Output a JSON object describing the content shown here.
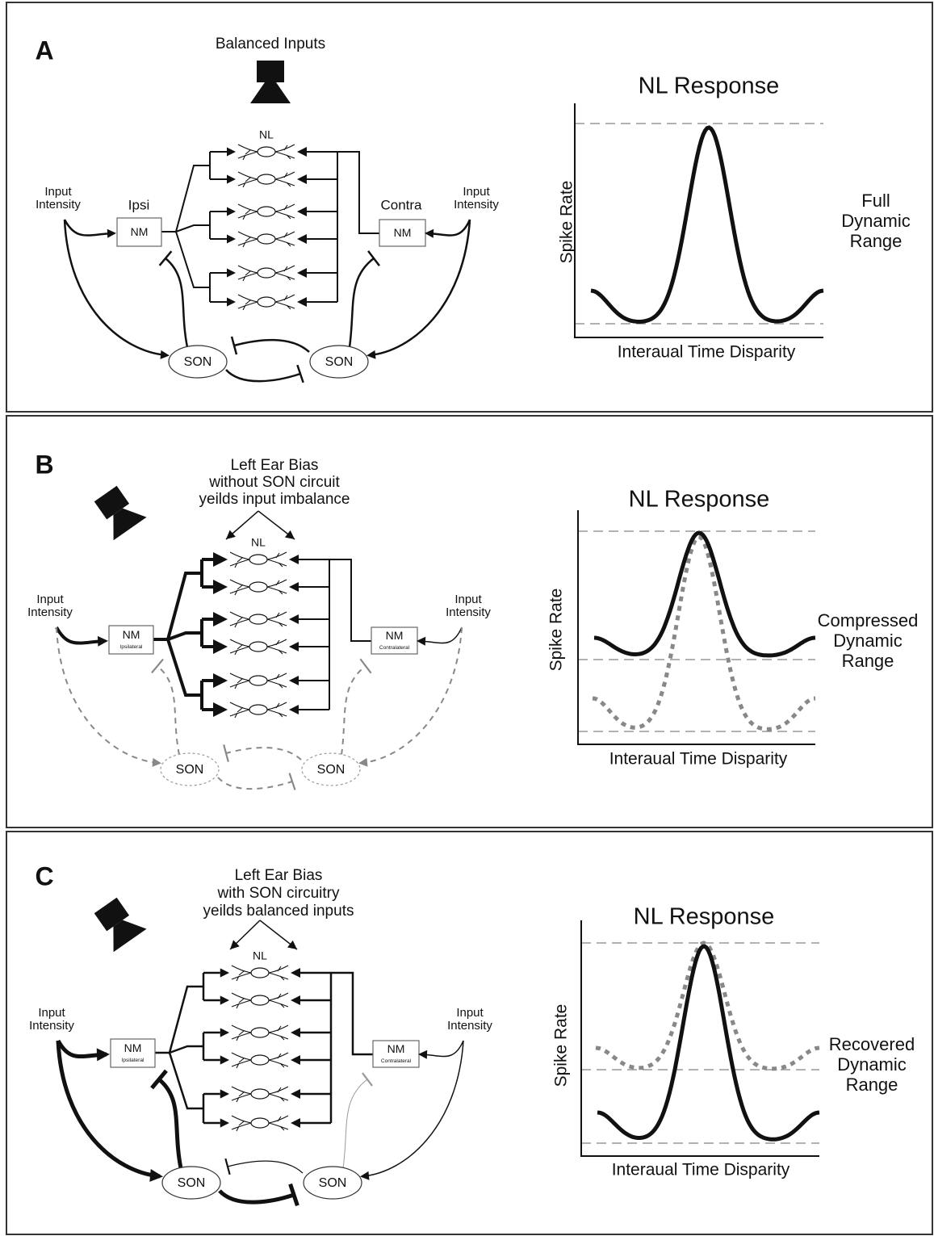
{
  "panels": [
    {
      "letter": "A",
      "stimulus": [
        "Balanced Inputs"
      ],
      "nl_label": "NL",
      "ipsi_label": "Ipsi",
      "contra_label": "Contra",
      "nm_left": [
        "NM"
      ],
      "nm_right": [
        "NM"
      ],
      "input_left": [
        "Input",
        "Intensity"
      ],
      "input_right": [
        "Input",
        "Intensity"
      ],
      "son_left": "SON",
      "son_right": "SON",
      "plot": {
        "title": "NL Response",
        "y_label": "Spike Rate",
        "x_label": "Interaual Time Disparity",
        "annotation": [
          "Full",
          "Dynamic",
          "Range"
        ]
      }
    },
    {
      "letter": "B",
      "stimulus": [
        "Left Ear Bias",
        "without SON circuit",
        "yeilds input imbalance"
      ],
      "nl_label": "NL",
      "nm_left": [
        "NM",
        "Ipsilateral"
      ],
      "nm_right": [
        "NM",
        "Contralateral"
      ],
      "input_left": [
        "Input",
        "Intensity"
      ],
      "input_right": [
        "Input",
        "Intensity"
      ],
      "son_left": "SON",
      "son_right": "SON",
      "plot": {
        "title": "NL Response",
        "y_label": "Spike Rate",
        "x_label": "Interaual Time Disparity",
        "annotation": [
          "Compressed",
          "Dynamic",
          "Range"
        ]
      }
    },
    {
      "letter": "C",
      "stimulus": [
        "Left Ear Bias",
        "with SON circuitry",
        "yeilds balanced inputs"
      ],
      "nl_label": "NL",
      "nm_left": [
        "NM",
        "Ipsilateral"
      ],
      "nm_right": [
        "NM",
        "Contralateral"
      ],
      "input_left": [
        "Input",
        "Intensity"
      ],
      "input_right": [
        "Input",
        "Intensity"
      ],
      "son_left": "SON",
      "son_right": "SON",
      "plot": {
        "title": "NL Response",
        "y_label": "Spike Rate",
        "x_label": "Interaual Time Disparity",
        "annotation": [
          "Recovered",
          "Dynamic",
          "Range"
        ]
      }
    }
  ]
}
